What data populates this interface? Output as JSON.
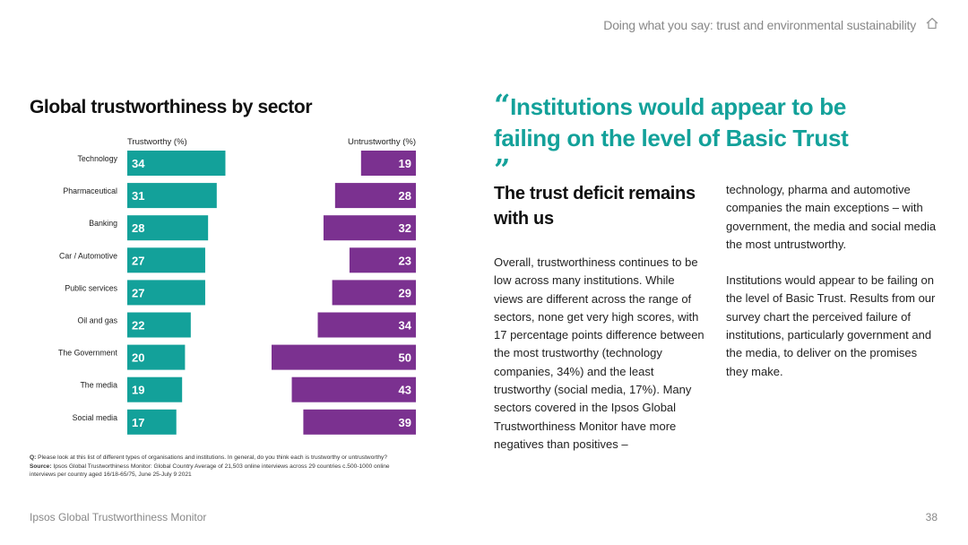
{
  "header": {
    "title": "Doing what you say: trust and environmental sustainability"
  },
  "chart_data": {
    "type": "bar",
    "title": "Global trustworthiness by sector",
    "categories": [
      "Technology",
      "Pharmaceutical",
      "Banking",
      "Car / Automotive",
      "Public services",
      "Oil and gas",
      "The Government",
      "The media",
      "Social media"
    ],
    "series": [
      {
        "name": "Trustworthy (%)",
        "values": [
          34,
          31,
          28,
          27,
          27,
          22,
          20,
          19,
          17
        ],
        "color": "#13a19a"
      },
      {
        "name": "Untrustworthy (%)",
        "values": [
          19,
          28,
          32,
          23,
          29,
          34,
          50,
          43,
          39
        ],
        "color": "#7b3190"
      }
    ]
  },
  "footnote": {
    "q_label": "Q:",
    "q_text": "Please look at this list of different types of organisations and institutions. In general, do you think each is trustworthy or untrustworthy?",
    "source_label": "Source:",
    "source_text": "Ipsos Global Trustworthiness Monitor: Global Country Average of 21,503 online interviews across 29 countries c.500-1000 online interviews per country aged 16/18-65/75, June 25-July 9 2021"
  },
  "quote": {
    "open": "“",
    "text": "Institutions would appear to be failing on the level of Basic Trust",
    "close": "”"
  },
  "subhead": "The trust deficit remains with us",
  "body": {
    "col1": "Overall, trustworthiness continues to be low across many institutions. While views are different across the range of sectors, none get very high scores, with 17 percentage points difference between the most trustworthy (technology companies, 34%) and the least trustworthy (social media, 17%). Many sectors covered in the Ipsos Global Trustworthiness Monitor have more negatives than positives –",
    "col2_p1": "technology, pharma and automotive companies the main exceptions – with government, the media and social media the most untrustworthy.",
    "col2_p2": "Institutions would appear to be failing on the level of Basic Trust. Results from our survey chart the perceived failure of institutions, particularly government and the media, to deliver on the promises they make."
  },
  "footer": {
    "brand": "Ipsos Global Trustworthiness Monitor",
    "page": "38"
  },
  "icons": {
    "home": "home-icon"
  }
}
